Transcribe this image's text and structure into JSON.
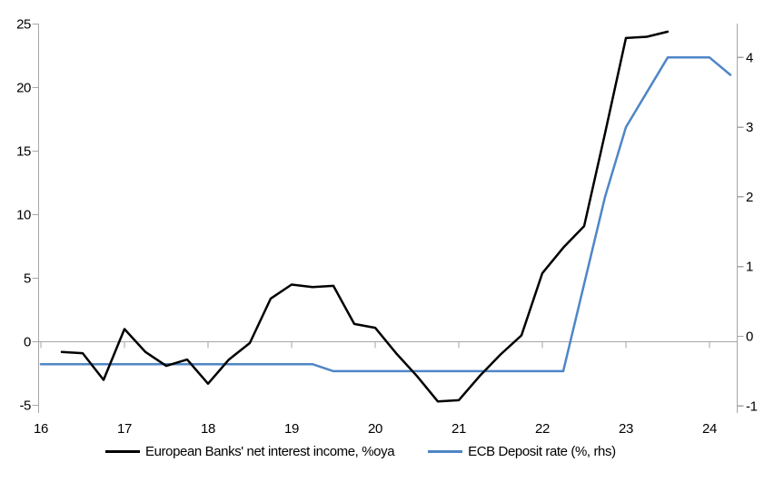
{
  "chart_data": {
    "type": "line",
    "title": "",
    "grid": "zero-line-only",
    "legend_position": "bottom",
    "x_axis": {
      "ticks": [
        16,
        17,
        18,
        19,
        20,
        21,
        22,
        23,
        24
      ],
      "tick_labels": [
        "16",
        "17",
        "18",
        "19",
        "20",
        "21",
        "22",
        "23",
        "24"
      ],
      "range": [
        16,
        24.35
      ]
    },
    "left_axis": {
      "ticks": [
        25,
        20,
        15,
        10,
        5,
        0,
        -5
      ],
      "tick_labels": [
        "25",
        "20",
        "15",
        "10",
        "5",
        "0",
        "-5"
      ],
      "range": [
        -5,
        25
      ]
    },
    "right_axis": {
      "ticks": [
        4,
        3,
        2,
        1,
        0,
        -1
      ],
      "tick_labels": [
        "4",
        "3",
        "2",
        "1",
        "0",
        "-1"
      ],
      "range": [
        -1.1,
        4.55
      ]
    },
    "series": [
      {
        "name": "European Banks' net interest income, %oya",
        "axis": "left",
        "color": "#000000",
        "x": [
          16.25,
          16.5,
          16.75,
          17.0,
          17.25,
          17.5,
          17.75,
          18.0,
          18.25,
          18.5,
          18.75,
          19.0,
          19.25,
          19.5,
          19.75,
          20.0,
          20.25,
          20.5,
          20.75,
          21.0,
          21.25,
          21.5,
          21.75,
          22.0,
          22.25,
          22.5,
          22.75,
          23.0,
          23.25,
          23.5
        ],
        "values": [
          -0.8,
          -0.9,
          -3.0,
          1.0,
          -0.8,
          -1.9,
          -1.4,
          -3.3,
          -1.4,
          -0.1,
          3.4,
          4.5,
          4.3,
          4.4,
          1.4,
          1.1,
          -0.9,
          -2.7,
          -4.7,
          -4.6,
          -2.7,
          -1.0,
          0.5,
          5.4,
          7.4,
          9.1,
          16.4,
          23.9,
          24.0,
          24.4
        ]
      },
      {
        "name": "ECB Deposit rate (%, rhs)",
        "axis": "right",
        "color": "#4f86c6",
        "x": [
          16.0,
          16.25,
          16.5,
          16.75,
          17.0,
          17.25,
          17.5,
          17.75,
          18.0,
          18.25,
          18.5,
          18.75,
          19.0,
          19.25,
          19.5,
          19.75,
          20.0,
          20.25,
          20.5,
          20.75,
          21.0,
          21.25,
          21.5,
          21.75,
          22.0,
          22.25,
          22.5,
          22.75,
          23.0,
          23.25,
          23.5,
          23.75,
          24.0,
          24.25
        ],
        "values": [
          -0.4,
          -0.4,
          -0.4,
          -0.4,
          -0.4,
          -0.4,
          -0.4,
          -0.4,
          -0.4,
          -0.4,
          -0.4,
          -0.4,
          -0.4,
          -0.4,
          -0.5,
          -0.5,
          -0.5,
          -0.5,
          -0.5,
          -0.5,
          -0.5,
          -0.5,
          -0.5,
          -0.5,
          -0.5,
          -0.5,
          0.75,
          2.0,
          3.0,
          3.5,
          4.0,
          4.0,
          4.0,
          3.75
        ]
      }
    ]
  },
  "colors": {
    "background": "#ffffff",
    "axis": "#a6a6a6",
    "text": "#000000"
  }
}
